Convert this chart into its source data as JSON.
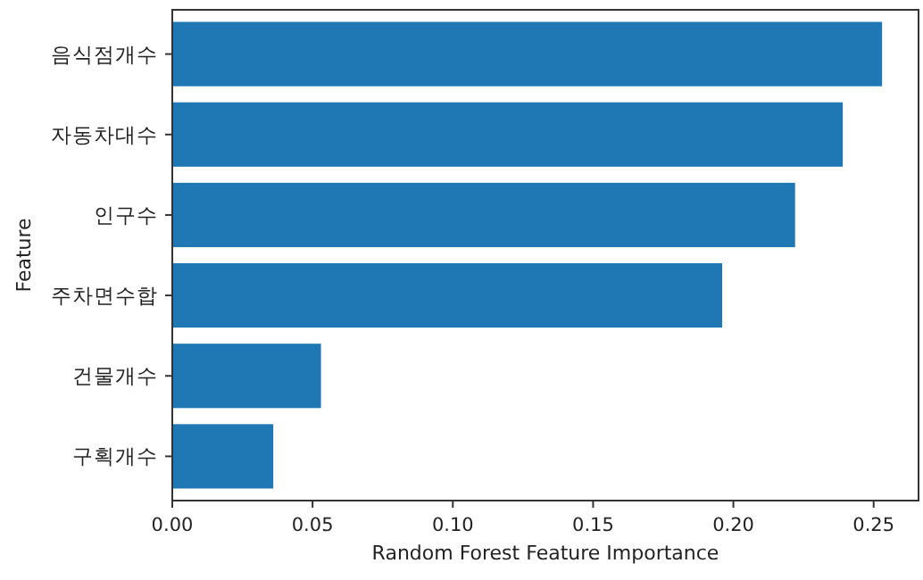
{
  "chart_data": {
    "type": "bar",
    "orientation": "horizontal",
    "xlabel": "Random Forest Feature Importance",
    "ylabel": "Feature",
    "categories": [
      "음식점개수",
      "자동차대수",
      "인구수",
      "주차면수합",
      "건물개수",
      "구획개수"
    ],
    "values": [
      0.253,
      0.239,
      0.222,
      0.196,
      0.053,
      0.036
    ],
    "color": "#1f77b4",
    "xlim": [
      0,
      0.266
    ],
    "xticks": [
      {
        "value": 0,
        "label": "0.00"
      },
      {
        "value": 0.05,
        "label": "0.05"
      },
      {
        "value": 0.1,
        "label": "0.10"
      },
      {
        "value": 0.15,
        "label": "0.15"
      },
      {
        "value": 0.2,
        "label": "0.20"
      },
      {
        "value": 0.25,
        "label": "0.25"
      }
    ],
    "grid": false
  }
}
